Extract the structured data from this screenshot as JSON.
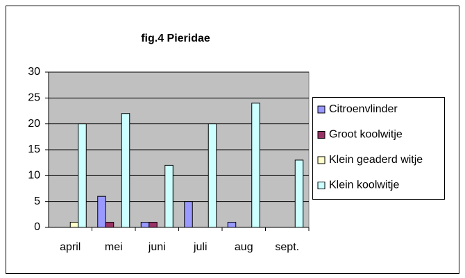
{
  "chart_data": {
    "type": "bar",
    "title": "fig.4  Pieridae",
    "categories": [
      "april",
      "mei",
      "juni",
      "juli",
      "aug",
      "sept."
    ],
    "series": [
      {
        "name": "Citroenvlinder",
        "color": "#9999ff",
        "values": [
          0,
          6,
          1,
          5,
          1,
          0
        ]
      },
      {
        "name": "Groot koolwitje",
        "color": "#993366",
        "values": [
          0,
          1,
          1,
          0,
          0,
          0
        ]
      },
      {
        "name": "Klein geaderd witje",
        "color": "#ffffcc",
        "values": [
          1,
          0,
          0,
          0,
          0,
          0
        ]
      },
      {
        "name": "Klein koolwitje",
        "color": "#ccffff",
        "values": [
          20,
          22,
          12,
          20,
          24,
          13
        ]
      }
    ],
    "ylim": [
      0,
      30
    ],
    "yticks": [
      0,
      5,
      10,
      15,
      20,
      25,
      30
    ],
    "grid": true,
    "legend": "right"
  }
}
